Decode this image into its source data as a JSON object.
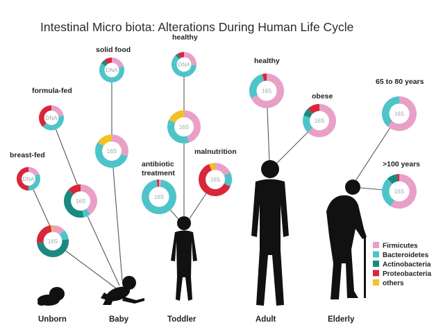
{
  "title": "Intestinal Micro biota: Alterations During Human Life Cycle",
  "colors": {
    "firmicutes": "#e9a0c8",
    "bacteroidetes": "#4ec4c8",
    "actinobacteria": "#1a8a80",
    "proteobacteria": "#d9263a",
    "others": "#f5c026"
  },
  "legend": [
    {
      "key": "firmicutes",
      "label": "Firmicutes"
    },
    {
      "key": "bacteroidetes",
      "label": "Bacteroidetes"
    },
    {
      "key": "actinobacteria",
      "label": "Actinobacteria"
    },
    {
      "key": "proteobacteria",
      "label": "Proteobacteria"
    },
    {
      "key": "others",
      "label": "others"
    }
  ],
  "stages": [
    "Unborn",
    "Baby",
    "Toddler",
    "Adult",
    "Elderly"
  ],
  "labels": {
    "breast_fed": "breast-fed",
    "formula_fed": "formula-fed",
    "solid_food": "solid food",
    "healthy_toddler": "healthy",
    "antibiotic_1": "antibiotic",
    "antibiotic_2": "treatment",
    "malnutrition": "malnutrition",
    "healthy_adult": "healthy",
    "obese": "obese",
    "age_65_80": "65 to 80 years",
    "age_100": ">100 years"
  },
  "method": {
    "dna": "DNA",
    "s16": "16S"
  },
  "donuts": [
    {
      "id": "breastfed-dna",
      "method": "DNA",
      "composition": {
        "firmicutes": 0.18,
        "bacteroidetes": 0.32,
        "actinobacteria": 0.0,
        "proteobacteria": 0.5,
        "others": 0.0
      }
    },
    {
      "id": "breastfed-16s",
      "method": "16S",
      "composition": {
        "firmicutes": 0.13,
        "bacteroidetes": 0.1,
        "actinobacteria": 0.5,
        "proteobacteria": 0.25,
        "others": 0.02
      }
    },
    {
      "id": "formulafed-dna",
      "method": "DNA",
      "composition": {
        "firmicutes": 0.22,
        "bacteroidetes": 0.4,
        "actinobacteria": 0.0,
        "proteobacteria": 0.38,
        "others": 0.0
      }
    },
    {
      "id": "formulafed-16s",
      "method": "16S",
      "composition": {
        "firmicutes": 0.4,
        "bacteroidetes": 0.07,
        "actinobacteria": 0.4,
        "proteobacteria": 0.13,
        "others": 0.0
      }
    },
    {
      "id": "solidfood-dna",
      "method": "DNA",
      "composition": {
        "firmicutes": 0.2,
        "bacteroidetes": 0.64,
        "actinobacteria": 0.06,
        "proteobacteria": 0.1,
        "others": 0.0
      }
    },
    {
      "id": "solidfood-16s",
      "method": "16S",
      "composition": {
        "firmicutes": 0.3,
        "bacteroidetes": 0.54,
        "actinobacteria": 0.0,
        "proteobacteria": 0.0,
        "others": 0.16
      }
    },
    {
      "id": "toddler-healthy-dna",
      "method": "DNA",
      "composition": {
        "firmicutes": 0.26,
        "bacteroidetes": 0.62,
        "actinobacteria": 0.04,
        "proteobacteria": 0.08,
        "others": 0.0
      }
    },
    {
      "id": "toddler-healthy-16s",
      "method": "16S",
      "composition": {
        "firmicutes": 0.45,
        "bacteroidetes": 0.37,
        "actinobacteria": 0.0,
        "proteobacteria": 0.0,
        "others": 0.18
      }
    },
    {
      "id": "antibiotic-16s",
      "method": "16S",
      "composition": {
        "firmicutes": 0.02,
        "bacteroidetes": 0.96,
        "actinobacteria": 0.0,
        "proteobacteria": 0.02,
        "others": 0.0
      }
    },
    {
      "id": "malnutrition-16s",
      "method": "16S",
      "composition": {
        "firmicutes": 0.18,
        "bacteroidetes": 0.14,
        "actinobacteria": 0.0,
        "proteobacteria": 0.62,
        "others": 0.06
      }
    },
    {
      "id": "adult-healthy-16s",
      "method": "16S",
      "composition": {
        "firmicutes": 0.68,
        "bacteroidetes": 0.28,
        "actinobacteria": 0.0,
        "proteobacteria": 0.04,
        "others": 0.0
      }
    },
    {
      "id": "adult-obese-16s",
      "method": "16S",
      "composition": {
        "firmicutes": 0.62,
        "bacteroidetes": 0.18,
        "actinobacteria": 0.08,
        "proteobacteria": 0.12,
        "others": 0.0
      }
    },
    {
      "id": "elderly-65-16s",
      "method": "16S",
      "composition": {
        "firmicutes": 0.62,
        "bacteroidetes": 0.38,
        "actinobacteria": 0.0,
        "proteobacteria": 0.0,
        "others": 0.0
      }
    },
    {
      "id": "elderly-100-16s",
      "method": "16S",
      "composition": {
        "firmicutes": 0.58,
        "bacteroidetes": 0.3,
        "actinobacteria": 0.1,
        "proteobacteria": 0.02,
        "others": 0.0
      }
    }
  ]
}
